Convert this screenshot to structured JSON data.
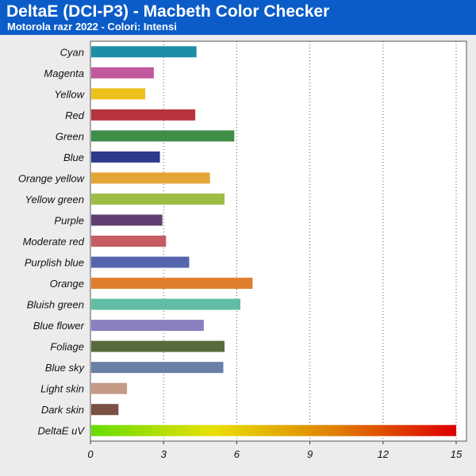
{
  "header": {
    "title": "DeltaE (DCI-P3) - Macbeth Color Checker",
    "subtitle": "Motorola razr 2022 - Colori: Intensi"
  },
  "chart_data": {
    "type": "bar",
    "orientation": "horizontal",
    "title": "DeltaE (DCI-P3) - Macbeth Color Checker",
    "subtitle": "Motorola razr 2022 - Colori: Intensi",
    "xlabel": "",
    "ylabel": "",
    "xlim": [
      0,
      15
    ],
    "x_ticks": [
      0,
      3,
      6,
      9,
      12,
      15
    ],
    "grid": "vertical-dotted",
    "legend": "none",
    "categories": [
      "Cyan",
      "Magenta",
      "Yellow",
      "Red",
      "Green",
      "Blue",
      "Orange yellow",
      "Yellow green",
      "Purple",
      "Moderate red",
      "Purplish blue",
      "Orange",
      "Bluish green",
      "Blue flower",
      "Foliage",
      "Blue sky",
      "Light skin",
      "Dark skin",
      "DeltaE uV"
    ],
    "values": [
      4.35,
      2.6,
      2.25,
      4.3,
      5.9,
      2.85,
      4.9,
      5.5,
      2.95,
      3.1,
      4.05,
      6.65,
      6.15,
      4.65,
      5.5,
      5.45,
      1.5,
      1.15,
      15
    ],
    "colors": [
      "#1a8fa6",
      "#c2589e",
      "#ecc11c",
      "#b83340",
      "#3e8e48",
      "#2f3a8c",
      "#e5a436",
      "#9dbd44",
      "#613e73",
      "#c65c64",
      "#5666ad",
      "#e07f2c",
      "#62bda6",
      "#8a7fbf",
      "#556a3d",
      "#6a7fa6",
      "#c49a86",
      "#7a5142",
      "gradient"
    ],
    "gradient_colors": [
      "#66dd00",
      "#e8e000",
      "#e08000",
      "#dd0000"
    ]
  }
}
